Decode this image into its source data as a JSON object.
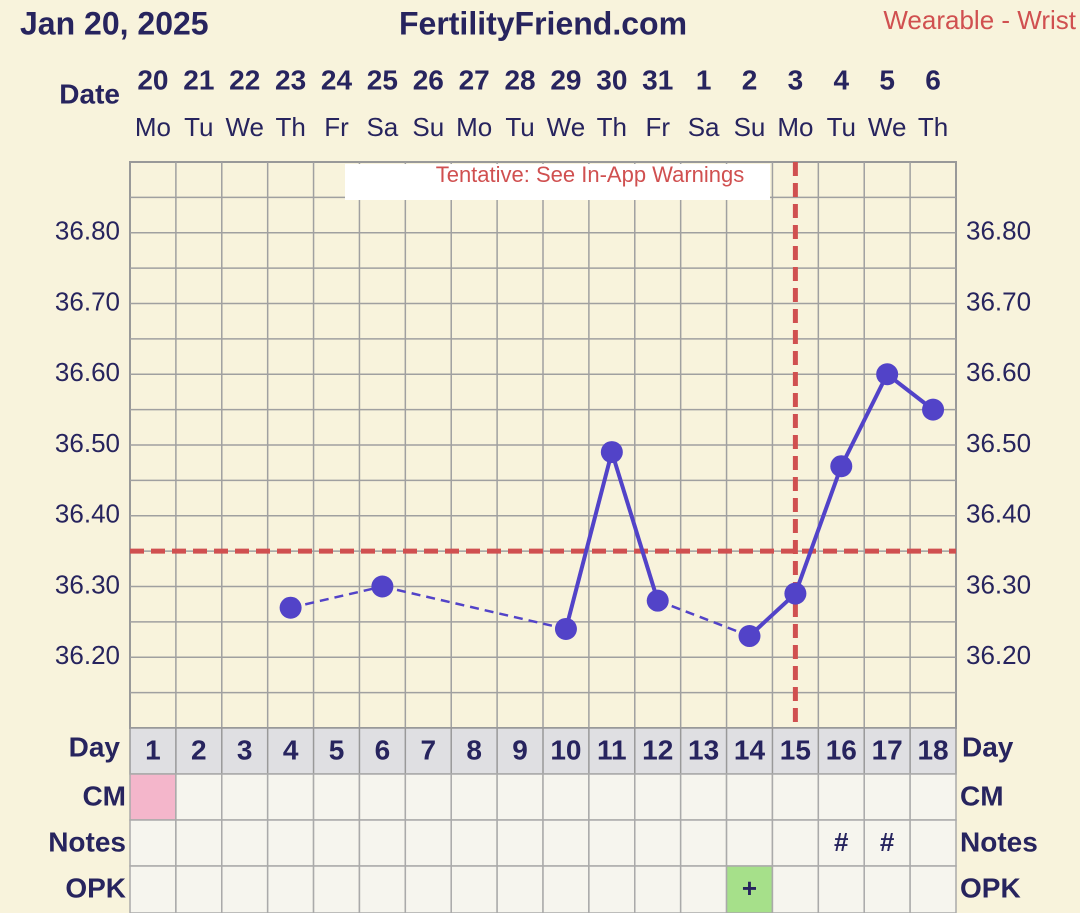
{
  "chart_data": {
    "type": "line",
    "date_label": "Jan 20, 2025",
    "title": "FertilityFriend.com",
    "subtitle": "Wearable - Wrist",
    "x_label": "Date",
    "annotation": "Tentative: See In-App Warnings",
    "dates": [
      20,
      21,
      22,
      23,
      24,
      25,
      26,
      27,
      28,
      29,
      30,
      31,
      1,
      2,
      3,
      4,
      5,
      6
    ],
    "weekdays": [
      "Mo",
      "Tu",
      "We",
      "Th",
      "Fr",
      "Sa",
      "Su",
      "Mo",
      "Tu",
      "We",
      "Th",
      "Fr",
      "Sa",
      "Su",
      "Mo",
      "Tu",
      "We",
      "Th"
    ],
    "day_label": "Day",
    "days": [
      1,
      2,
      3,
      4,
      5,
      6,
      7,
      8,
      9,
      10,
      11,
      12,
      13,
      14,
      15,
      16,
      17,
      18
    ],
    "values": [
      null,
      null,
      null,
      36.27,
      null,
      36.3,
      null,
      null,
      null,
      36.24,
      36.49,
      36.28,
      null,
      36.23,
      36.29,
      36.47,
      36.6,
      36.55
    ],
    "color": "#5243c8",
    "ylim": [
      36.1,
      36.9
    ],
    "yticks": [
      {
        "value": 36.2,
        "label": "36.20"
      },
      {
        "value": 36.3,
        "label": "36.30"
      },
      {
        "value": 36.4,
        "label": "36.40"
      },
      {
        "value": 36.5,
        "label": "36.50"
      },
      {
        "value": 36.6,
        "label": "36.60"
      },
      {
        "value": 36.7,
        "label": "36.70"
      },
      {
        "value": 36.8,
        "label": "36.80"
      }
    ],
    "ygrid": [
      36.15,
      36.2,
      36.25,
      36.3,
      36.35,
      36.4,
      36.45,
      36.5,
      36.55,
      36.6,
      36.65,
      36.7,
      36.75,
      36.8,
      36.85
    ],
    "coverline": 36.35,
    "ovulation_day": 15,
    "marker_color": "#d05050",
    "rows": [
      {
        "label": "CM",
        "fills": [
          "#f4b6cb",
          null,
          null,
          null,
          null,
          null,
          null,
          null,
          null,
          null,
          null,
          null,
          null,
          null,
          null,
          null,
          null,
          null
        ]
      },
      {
        "label": "Notes",
        "marks": [
          null,
          null,
          null,
          null,
          null,
          null,
          null,
          null,
          null,
          null,
          null,
          null,
          null,
          null,
          null,
          "#",
          "#",
          null
        ]
      },
      {
        "label": "OPK",
        "marks": [
          null,
          null,
          null,
          null,
          null,
          null,
          null,
          null,
          null,
          null,
          null,
          null,
          null,
          "+",
          null,
          null,
          null,
          null
        ],
        "fills": [
          null,
          null,
          null,
          null,
          null,
          null,
          null,
          null,
          null,
          null,
          null,
          null,
          null,
          "#a6e08a",
          null,
          null,
          null,
          null
        ]
      }
    ]
  }
}
